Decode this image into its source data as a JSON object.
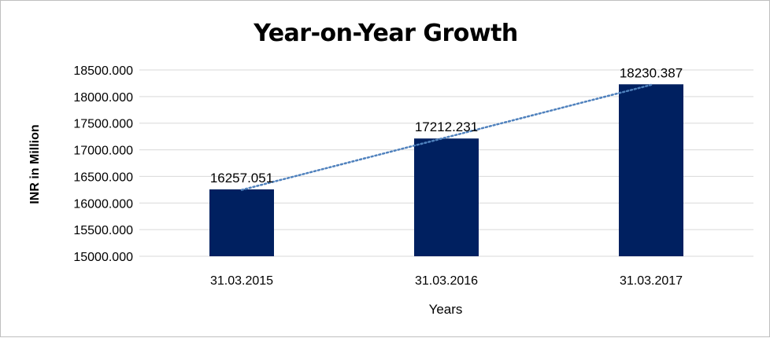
{
  "chart_data": {
    "type": "bar",
    "title": "Year-on-Year Growth",
    "xlabel": "Years",
    "ylabel": "INR in Million",
    "categories": [
      "31.03.2015",
      "31.03.2016",
      "31.03.2017"
    ],
    "series": [
      {
        "values": [
          16257.051,
          17212.231,
          18230.387
        ],
        "data_labels": [
          "16257.051",
          "17212.231",
          "18230.387"
        ],
        "color": "#002060"
      }
    ],
    "ylim": [
      15000,
      18500
    ],
    "ytick_values": [
      15000,
      15500,
      16000,
      16500,
      17000,
      17500,
      18000,
      18500
    ],
    "ytick_labels": [
      "15000.000",
      "15500.000",
      "16000.000",
      "16500.000",
      "17000.000",
      "17500.000",
      "18000.000",
      "18500.000"
    ],
    "grid": true,
    "gridline_color": "#d9d9d9",
    "trendline": {
      "type": "linear",
      "style": "dotted",
      "color": "#4f81bd"
    },
    "legend": "none"
  }
}
